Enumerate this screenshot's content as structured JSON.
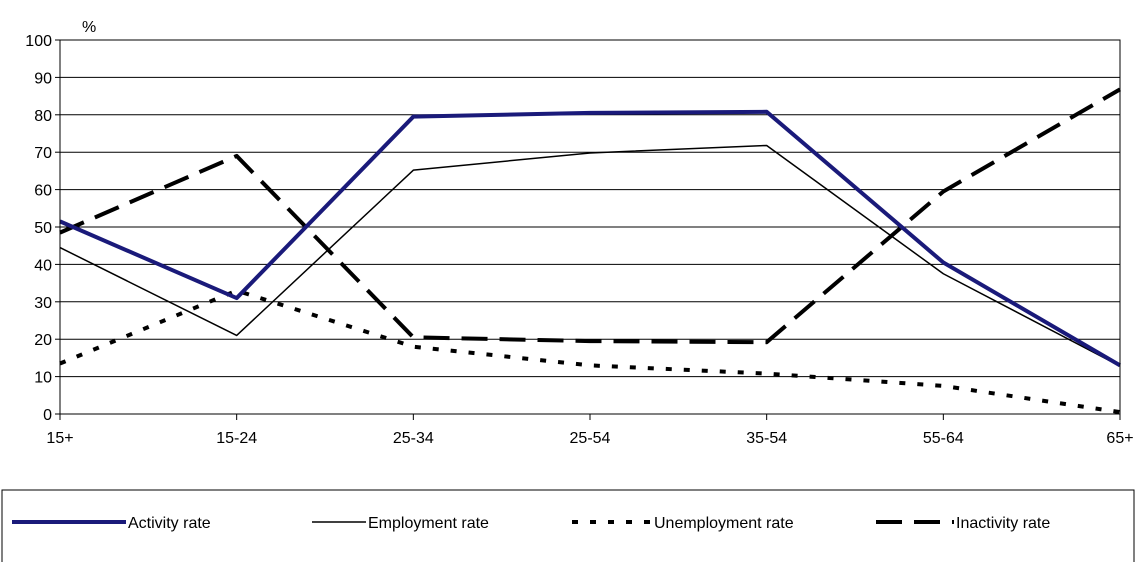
{
  "chart_data": {
    "type": "line",
    "title": "",
    "xlabel": "",
    "ylabel": "%",
    "categories": [
      "15+",
      "15-24",
      "25-34",
      "25-54",
      "35-54",
      "55-64",
      "65+"
    ],
    "ylim": [
      0,
      100
    ],
    "yticks": [
      0,
      10,
      20,
      30,
      40,
      50,
      60,
      70,
      80,
      90,
      100
    ],
    "grid": "horizontal",
    "legend_placement": "bottom",
    "series": [
      {
        "name": "Activity rate",
        "values": [
          51.5,
          31,
          79.5,
          80.5,
          80.8,
          40.5,
          13
        ],
        "color": "#1a1a7a",
        "style": "solid-thick"
      },
      {
        "name": "Employment rate",
        "values": [
          44.5,
          21,
          65.2,
          69.8,
          71.8,
          37.5,
          12.8
        ],
        "color": "#000000",
        "style": "solid-thin"
      },
      {
        "name": "Unemployment rate",
        "values": [
          13.5,
          33,
          18,
          13,
          10.8,
          7.5,
          0.5
        ],
        "color": "#000000",
        "style": "dotted"
      },
      {
        "name": "Inactivity rate",
        "values": [
          48.5,
          69,
          20.5,
          19.5,
          19.2,
          59.5,
          86.8
        ],
        "color": "#000000",
        "style": "dashed"
      }
    ]
  }
}
